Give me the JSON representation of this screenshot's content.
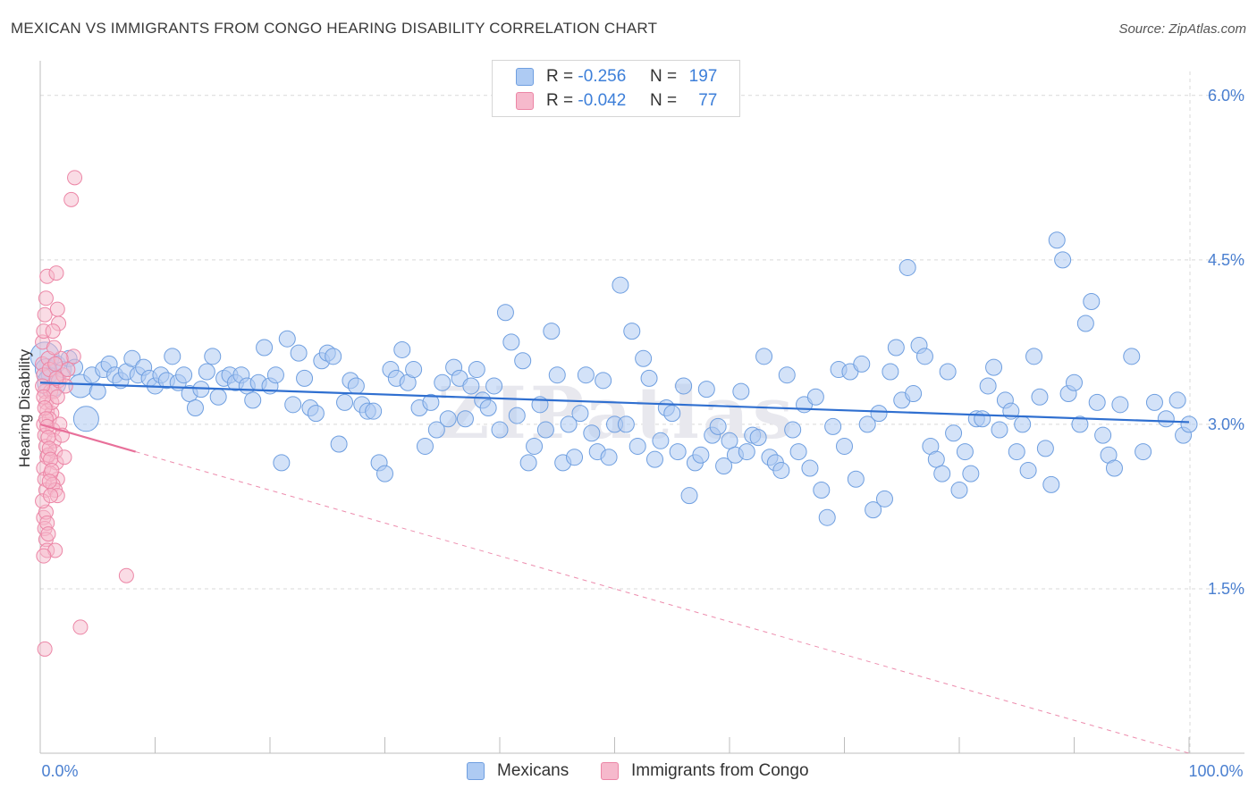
{
  "title": "MEXICAN VS IMMIGRANTS FROM CONGO HEARING DISABILITY CORRELATION CHART",
  "source": "Source: ZipAtlas.com",
  "watermark": "ZIPatlas",
  "colors": {
    "blue_fill": "#aecbf3",
    "blue_stroke": "#6f9fe0",
    "blue_line": "#2f6fd0",
    "pink_fill": "#f6b9cc",
    "pink_stroke": "#ec86a6",
    "pink_line": "#e8709a",
    "axis_text": "#4a7fd0",
    "grid": "#d9d9d9"
  },
  "stats": [
    {
      "r_label": "R =",
      "r_value": "-0.256",
      "n_label": "N =",
      "n_value": "197"
    },
    {
      "r_label": "R =",
      "r_value": "-0.042",
      "n_label": "N =",
      "n_value": "77"
    }
  ],
  "chart_data": {
    "type": "scatter",
    "title": "MEXICAN VS IMMIGRANTS FROM CONGO HEARING DISABILITY CORRELATION CHART",
    "xlabel": "",
    "ylabel": "Hearing Disability",
    "xlim": [
      0,
      100
    ],
    "ylim": [
      0,
      6.3
    ],
    "x_tick_labels": [
      "0.0%",
      "100.0%"
    ],
    "y_ticks": [
      1.5,
      3.0,
      4.5,
      6.0
    ],
    "y_tick_labels": [
      "1.5%",
      "3.0%",
      "4.5%",
      "6.0%"
    ],
    "grid": true,
    "legend_position": "bottom",
    "series": [
      {
        "name": "Mexicans",
        "trend": {
          "x": [
            0,
            100
          ],
          "y": [
            3.38,
            3.02
          ]
        },
        "points": [
          [
            0.4,
            3.62
          ],
          [
            0.5,
            3.5
          ],
          [
            0.8,
            3.45
          ],
          [
            1.0,
            3.38
          ],
          [
            1.5,
            3.55
          ],
          [
            2.0,
            3.5
          ],
          [
            2.5,
            3.6
          ],
          [
            3.0,
            3.52
          ],
          [
            3.5,
            3.35
          ],
          [
            4.0,
            3.05
          ],
          [
            4.5,
            3.45
          ],
          [
            5.0,
            3.3
          ],
          [
            5.5,
            3.5
          ],
          [
            6.0,
            3.55
          ],
          [
            6.5,
            3.45
          ],
          [
            7.0,
            3.4
          ],
          [
            7.5,
            3.48
          ],
          [
            8.0,
            3.6
          ],
          [
            8.5,
            3.45
          ],
          [
            9.0,
            3.52
          ],
          [
            9.5,
            3.42
          ],
          [
            10.0,
            3.35
          ],
          [
            10.5,
            3.45
          ],
          [
            11.0,
            3.4
          ],
          [
            11.5,
            3.62
          ],
          [
            12.0,
            3.38
          ],
          [
            12.5,
            3.45
          ],
          [
            13.0,
            3.28
          ],
          [
            13.5,
            3.15
          ],
          [
            14.0,
            3.32
          ],
          [
            14.5,
            3.48
          ],
          [
            15.0,
            3.62
          ],
          [
            15.5,
            3.25
          ],
          [
            16.0,
            3.42
          ],
          [
            16.5,
            3.45
          ],
          [
            17.0,
            3.38
          ],
          [
            17.5,
            3.45
          ],
          [
            18.0,
            3.35
          ],
          [
            18.5,
            3.22
          ],
          [
            19.0,
            3.38
          ],
          [
            19.5,
            3.7
          ],
          [
            20.0,
            3.35
          ],
          [
            20.5,
            3.45
          ],
          [
            21.0,
            2.65
          ],
          [
            21.5,
            3.78
          ],
          [
            22.0,
            3.18
          ],
          [
            22.5,
            3.65
          ],
          [
            23.0,
            3.42
          ],
          [
            23.5,
            3.15
          ],
          [
            24.0,
            3.1
          ],
          [
            24.5,
            3.58
          ],
          [
            25.0,
            3.65
          ],
          [
            25.5,
            3.62
          ],
          [
            26.0,
            2.82
          ],
          [
            26.5,
            3.2
          ],
          [
            27.0,
            3.4
          ],
          [
            27.5,
            3.35
          ],
          [
            28.0,
            3.18
          ],
          [
            28.5,
            3.12
          ],
          [
            29.0,
            3.12
          ],
          [
            29.5,
            2.65
          ],
          [
            30.0,
            2.55
          ],
          [
            30.5,
            3.5
          ],
          [
            31.0,
            3.42
          ],
          [
            31.5,
            3.68
          ],
          [
            32.0,
            3.38
          ],
          [
            32.5,
            3.5
          ],
          [
            33.0,
            3.15
          ],
          [
            33.5,
            2.8
          ],
          [
            34.0,
            3.2
          ],
          [
            34.5,
            2.95
          ],
          [
            35.0,
            3.38
          ],
          [
            35.5,
            3.05
          ],
          [
            36.0,
            3.52
          ],
          [
            36.5,
            3.42
          ],
          [
            37.0,
            3.05
          ],
          [
            37.5,
            3.35
          ],
          [
            38.0,
            3.5
          ],
          [
            38.5,
            3.22
          ],
          [
            39.0,
            3.15
          ],
          [
            39.5,
            3.35
          ],
          [
            40.0,
            2.95
          ],
          [
            40.5,
            4.02
          ],
          [
            41.0,
            3.75
          ],
          [
            41.5,
            3.08
          ],
          [
            42.0,
            3.58
          ],
          [
            42.5,
            2.65
          ],
          [
            43.0,
            2.8
          ],
          [
            43.5,
            3.18
          ],
          [
            44.0,
            2.95
          ],
          [
            44.5,
            3.85
          ],
          [
            45.0,
            3.45
          ],
          [
            45.5,
            2.65
          ],
          [
            46.0,
            3.0
          ],
          [
            46.5,
            2.7
          ],
          [
            47.0,
            3.1
          ],
          [
            47.5,
            3.45
          ],
          [
            48.0,
            2.92
          ],
          [
            48.5,
            2.75
          ],
          [
            49.0,
            3.4
          ],
          [
            49.5,
            2.7
          ],
          [
            50.0,
            3.0
          ],
          [
            50.5,
            4.27
          ],
          [
            51.0,
            3.0
          ],
          [
            51.5,
            3.85
          ],
          [
            52.0,
            2.8
          ],
          [
            52.5,
            3.6
          ],
          [
            53.0,
            3.42
          ],
          [
            53.5,
            2.68
          ],
          [
            54.0,
            2.85
          ],
          [
            54.5,
            3.15
          ],
          [
            55.0,
            3.1
          ],
          [
            55.5,
            2.75
          ],
          [
            56.0,
            3.35
          ],
          [
            56.5,
            2.35
          ],
          [
            57.0,
            2.65
          ],
          [
            57.5,
            2.72
          ],
          [
            58.0,
            3.32
          ],
          [
            58.5,
            2.9
          ],
          [
            59.0,
            2.98
          ],
          [
            59.5,
            2.62
          ],
          [
            60.0,
            2.85
          ],
          [
            60.5,
            2.72
          ],
          [
            61.0,
            3.3
          ],
          [
            61.5,
            2.75
          ],
          [
            62.0,
            2.9
          ],
          [
            62.5,
            2.88
          ],
          [
            63.0,
            3.62
          ],
          [
            63.5,
            2.7
          ],
          [
            64.0,
            2.65
          ],
          [
            64.5,
            2.58
          ],
          [
            65.0,
            3.45
          ],
          [
            65.5,
            2.95
          ],
          [
            66.0,
            2.75
          ],
          [
            66.5,
            3.18
          ],
          [
            67.0,
            2.6
          ],
          [
            67.5,
            3.25
          ],
          [
            68.0,
            2.4
          ],
          [
            68.5,
            2.15
          ],
          [
            69.0,
            2.98
          ],
          [
            69.5,
            3.5
          ],
          [
            70.0,
            2.8
          ],
          [
            70.5,
            3.48
          ],
          [
            71.0,
            2.5
          ],
          [
            71.5,
            3.55
          ],
          [
            72.0,
            3.0
          ],
          [
            72.5,
            2.22
          ],
          [
            73.0,
            3.1
          ],
          [
            73.5,
            2.32
          ],
          [
            74.0,
            3.48
          ],
          [
            74.5,
            3.7
          ],
          [
            75.0,
            3.22
          ],
          [
            75.5,
            4.43
          ],
          [
            76.0,
            3.28
          ],
          [
            76.5,
            3.72
          ],
          [
            77.0,
            3.62
          ],
          [
            77.5,
            2.8
          ],
          [
            78.0,
            2.68
          ],
          [
            78.5,
            2.55
          ],
          [
            79.0,
            3.48
          ],
          [
            79.5,
            2.92
          ],
          [
            80.0,
            2.4
          ],
          [
            80.5,
            2.75
          ],
          [
            81.0,
            2.55
          ],
          [
            81.5,
            3.05
          ],
          [
            82.0,
            3.05
          ],
          [
            82.5,
            3.35
          ],
          [
            83.0,
            3.52
          ],
          [
            83.5,
            2.95
          ],
          [
            84.0,
            3.22
          ],
          [
            84.5,
            3.12
          ],
          [
            85.0,
            2.75
          ],
          [
            85.5,
            3.0
          ],
          [
            86.0,
            2.58
          ],
          [
            86.5,
            3.62
          ],
          [
            87.0,
            3.25
          ],
          [
            87.5,
            2.78
          ],
          [
            88.0,
            2.45
          ],
          [
            88.5,
            4.68
          ],
          [
            89.0,
            4.5
          ],
          [
            89.5,
            3.28
          ],
          [
            90.0,
            3.38
          ],
          [
            90.5,
            3.0
          ],
          [
            91.0,
            3.92
          ],
          [
            91.5,
            4.12
          ],
          [
            92.0,
            3.2
          ],
          [
            92.5,
            2.9
          ],
          [
            93.0,
            2.72
          ],
          [
            93.5,
            2.6
          ],
          [
            94.0,
            3.18
          ],
          [
            95.0,
            3.62
          ],
          [
            96.0,
            2.75
          ],
          [
            97.0,
            3.2
          ],
          [
            98.0,
            3.05
          ],
          [
            99.0,
            3.22
          ],
          [
            99.5,
            2.9
          ],
          [
            100.0,
            3.0
          ]
        ]
      },
      {
        "name": "Immigrants from Congo",
        "trend_solid": {
          "x": [
            0,
            8.3
          ],
          "y": [
            3.0,
            2.75
          ]
        },
        "trend_dashed": {
          "x": [
            8.3,
            100
          ],
          "y": [
            2.75,
            0.0
          ]
        },
        "points": [
          [
            0.2,
            3.55
          ],
          [
            0.3,
            3.45
          ],
          [
            0.4,
            3.3
          ],
          [
            0.5,
            3.2
          ],
          [
            0.6,
            3.12
          ],
          [
            0.3,
            3.0
          ],
          [
            0.4,
            2.9
          ],
          [
            0.5,
            2.8
          ],
          [
            0.6,
            2.7
          ],
          [
            0.3,
            2.6
          ],
          [
            0.4,
            2.5
          ],
          [
            0.5,
            2.4
          ],
          [
            0.2,
            3.75
          ],
          [
            0.3,
            3.85
          ],
          [
            0.4,
            4.0
          ],
          [
            0.5,
            4.15
          ],
          [
            0.6,
            4.35
          ],
          [
            0.7,
            3.6
          ],
          [
            0.8,
            3.5
          ],
          [
            0.9,
            3.3
          ],
          [
            1.0,
            3.1
          ],
          [
            1.1,
            2.95
          ],
          [
            1.2,
            2.85
          ],
          [
            1.3,
            2.75
          ],
          [
            1.4,
            2.65
          ],
          [
            1.5,
            2.5
          ],
          [
            0.3,
            2.15
          ],
          [
            0.4,
            2.05
          ],
          [
            0.5,
            1.95
          ],
          [
            0.6,
            1.85
          ],
          [
            0.4,
            0.95
          ],
          [
            3.0,
            5.25
          ],
          [
            2.7,
            5.05
          ],
          [
            1.4,
            4.38
          ],
          [
            1.5,
            4.05
          ],
          [
            1.6,
            3.92
          ],
          [
            2.9,
            3.62
          ],
          [
            1.2,
            3.3
          ],
          [
            1.0,
            3.2
          ],
          [
            0.8,
            3.05
          ],
          [
            0.7,
            2.72
          ],
          [
            0.9,
            2.55
          ],
          [
            1.1,
            2.45
          ],
          [
            1.3,
            2.4
          ],
          [
            1.5,
            2.35
          ],
          [
            0.5,
            2.2
          ],
          [
            0.6,
            2.1
          ],
          [
            0.7,
            2.0
          ],
          [
            1.3,
            1.85
          ],
          [
            3.5,
            1.15
          ],
          [
            7.5,
            1.62
          ],
          [
            0.2,
            3.35
          ],
          [
            0.3,
            3.25
          ],
          [
            0.4,
            3.15
          ],
          [
            0.5,
            3.05
          ],
          [
            0.6,
            2.98
          ],
          [
            0.7,
            2.88
          ],
          [
            0.8,
            2.78
          ],
          [
            0.9,
            2.68
          ],
          [
            1.0,
            2.58
          ],
          [
            1.6,
            3.4
          ],
          [
            1.8,
            3.6
          ],
          [
            2.0,
            3.45
          ],
          [
            2.2,
            3.35
          ],
          [
            2.4,
            3.5
          ],
          [
            1.7,
            3.0
          ],
          [
            1.9,
            2.9
          ],
          [
            2.1,
            2.7
          ],
          [
            0.2,
            2.3
          ],
          [
            0.3,
            1.8
          ],
          [
            1.1,
            3.85
          ],
          [
            1.2,
            3.7
          ],
          [
            1.3,
            3.55
          ],
          [
            1.4,
            3.42
          ],
          [
            1.5,
            3.25
          ],
          [
            0.8,
            2.48
          ],
          [
            0.9,
            2.35
          ]
        ]
      }
    ]
  },
  "legend": [
    {
      "label": "Mexicans",
      "fill": "#aecbf3",
      "stroke": "#6f9fe0"
    },
    {
      "label": "Immigrants from Congo",
      "fill": "#f6b9cc",
      "stroke": "#ec86a6"
    }
  ]
}
